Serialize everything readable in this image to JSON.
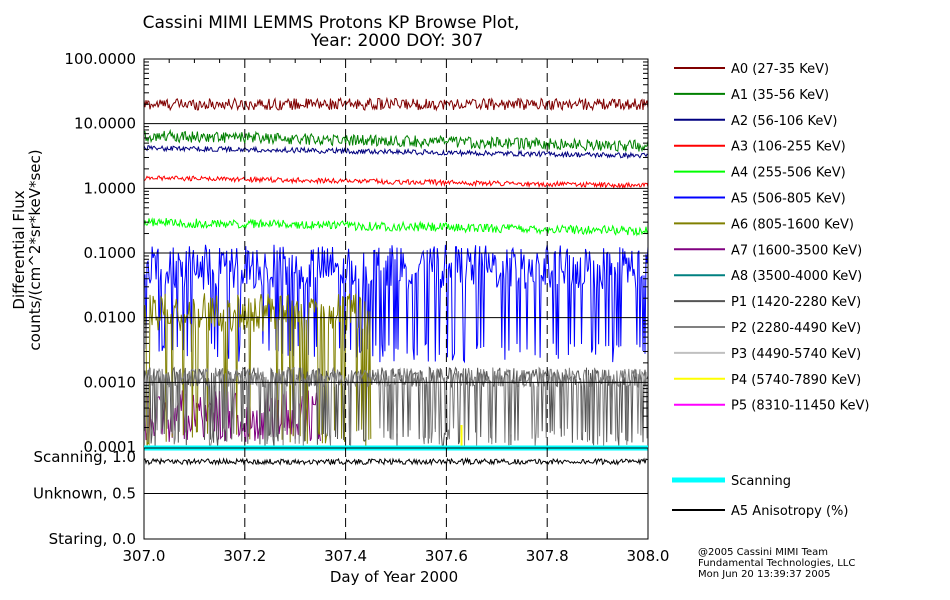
{
  "chart_data": {
    "type": "line",
    "title": "Cassini MIMI LEMMS Protons KP Browse Plot,",
    "subtitle": "Year: 2000 DOY: 307",
    "xlabel": "Day of Year 2000",
    "ylabel_line1": "Differential Flux",
    "ylabel_line2": "counts/(cm^2*sr*keV*sec)",
    "xlim": [
      307.0,
      308.0
    ],
    "x_ticks": [
      "307.0",
      "307.2",
      "307.4",
      "307.6",
      "307.8",
      "308.0"
    ],
    "x_tick_values": [
      307.0,
      307.2,
      307.4,
      307.6,
      307.8,
      308.0
    ],
    "y_scale": "log",
    "ylim": [
      0.0001,
      100.0
    ],
    "y_ticks": [
      "100.0000",
      "10.0000",
      "1.0000",
      "0.1000",
      "0.0100",
      "0.0010",
      "0.0001"
    ],
    "y_tick_values": [
      100,
      10,
      1,
      0.1,
      0.01,
      0.001,
      0.0001
    ],
    "grid": "dashed vertical at 0.2 day, solid horizontal per decade",
    "legend_position": "right",
    "series": [
      {
        "name": "A0 (27-35 KeV)",
        "color": "#800000",
        "level": 20,
        "spread": 0.09
      },
      {
        "name": "A1 (35-56 KeV)",
        "color": "#008000",
        "level": 6.5,
        "level_end": 4.5,
        "spread": 0.09
      },
      {
        "name": "A2 (56-106 KeV)",
        "color": "#000080",
        "level": 4.2,
        "level_end": 3.2,
        "spread": 0.04
      },
      {
        "name": "A3 (106-255 KeV)",
        "color": "#ff0000",
        "level": 1.45,
        "level_end": 1.1,
        "spread": 0.04
      },
      {
        "name": "A4 (255-506 KeV)",
        "color": "#00ff00",
        "level": 0.3,
        "level_end": 0.22,
        "spread": 0.07
      },
      {
        "name": "A5 (506-805 KeV)",
        "color": "#0000ff",
        "level": 0.06,
        "spread": 0.35,
        "dropouts_to": 0.002
      },
      {
        "name": "A6 (805-1600 KeV)",
        "color": "#808000",
        "level": 0.012,
        "spread": 0.3,
        "present_until": 307.45,
        "dropouts_to": 0.0001
      },
      {
        "name": "A7 (1600-3500 KeV)",
        "color": "#800080",
        "level": 0.0003,
        "spread": 0.4,
        "present_until": 307.35
      },
      {
        "name": "A8 (3500-4000 KeV)",
        "color": "#008080",
        "level": null
      },
      {
        "name": "P1 (1420-2280 KeV)",
        "color": "#555555",
        "level": 0.0012,
        "spread": 0.15,
        "dropouts_to": 0.0001
      },
      {
        "name": "P2 (2280-4490 KeV)",
        "color": "#808080",
        "level": 0.0012,
        "spread": 0.15,
        "dropouts_to": 0.0001
      },
      {
        "name": "P3 (4490-5740 KeV)",
        "color": "#c0c0c0",
        "level": null
      },
      {
        "name": "P4 (5740-7890 KeV)",
        "color": "#ffff00",
        "level": null,
        "spike_at": 307.63
      },
      {
        "name": "P5 (8310-11450 KeV)",
        "color": "#ff00ff",
        "level": null
      }
    ],
    "mode_panel": {
      "y_ticks": [
        "Scanning, 1.0",
        "Unknown, 0.5",
        "Staring, 0.0"
      ],
      "y_tick_values": [
        1.0,
        0.5,
        0.0
      ],
      "ylim": [
        0.0,
        1.0
      ],
      "series": [
        {
          "name": "Scanning",
          "color": "#00ffff",
          "value": 1.0
        },
        {
          "name": "A5 Anisotropy (%)",
          "color": "#000000",
          "value": 0.85,
          "spread": 0.03
        }
      ]
    }
  },
  "credit": {
    "line1": "@2005 Cassini MIMI Team",
    "line2": "Fundamental Technologies, LLC",
    "line3": "Mon Jun 20 13:39:37 2005"
  }
}
